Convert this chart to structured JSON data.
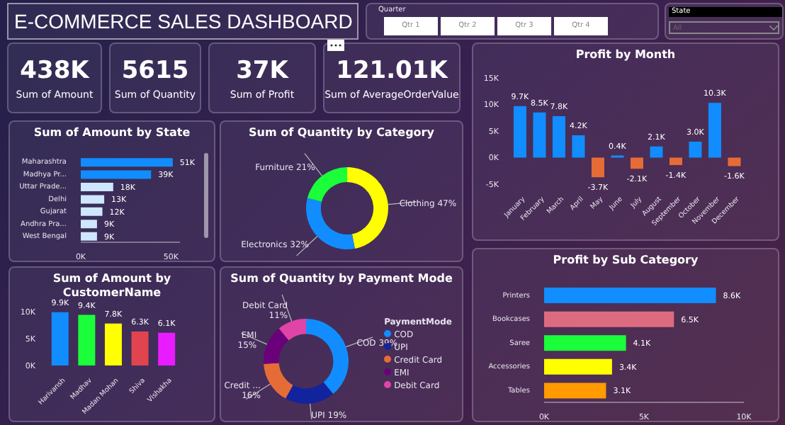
{
  "chart_data": [
    {
      "type": "other",
      "title": "E-COMMERCE SALES DASHBOARD",
      "annotations": [
        "Quarter",
        "Qtr 1",
        "Qtr 2",
        "Qtr 3",
        "Qtr 4",
        "State",
        "All"
      ]
    },
    {
      "type": "other",
      "annotations": [
        "438K",
        "Sum of Amount",
        "5615",
        "Sum of Quantity",
        "37K",
        "Sum of Profit",
        "121.01K",
        "Sum of AverageOrderValue"
      ]
    },
    {
      "type": "bar",
      "title": "Sum of Amount by State",
      "orientation": "horizontal",
      "categories": [
        "Maharashtra",
        "Madhya Pr...",
        "Uttar Prade...",
        "Delhi",
        "Gujarat",
        "Andhra Pra...",
        "West Bengal"
      ],
      "values": [
        51000,
        39000,
        18000,
        13000,
        12000,
        9000,
        9000
      ],
      "value_labels": [
        "51K",
        "39K",
        "18K",
        "13K",
        "12K",
        "9K",
        "9K"
      ],
      "colors": [
        "#118dff",
        "#118dff",
        "#cfe6ff",
        "#cfe6ff",
        "#cfe6ff",
        "#cfe6ff",
        "#cfe6ff"
      ],
      "xlim": [
        0,
        55000
      ],
      "xticks": [
        {
          "value": 0,
          "label": "0K"
        },
        {
          "value": 50000,
          "label": "50K"
        }
      ]
    },
    {
      "type": "donut",
      "title": "Sum of Quantity by Category",
      "categories": [
        "Clothing",
        "Electronics",
        "Furniture"
      ],
      "values": [
        47,
        32,
        21
      ],
      "value_labels": [
        "47%",
        "32%",
        "21%"
      ],
      "colors": [
        "#ffff00",
        "#118dff",
        "#1aff3a"
      ]
    },
    {
      "type": "bar",
      "title": "Profit by Month",
      "categories": [
        "January",
        "February",
        "March",
        "April",
        "May",
        "June",
        "July",
        "August",
        "September",
        "October",
        "November",
        "December"
      ],
      "values": [
        9700,
        8500,
        7800,
        4200,
        -3700,
        400,
        -2100,
        2100,
        -1400,
        3000,
        10300,
        -1600
      ],
      "value_labels": [
        "9.7K",
        "8.5K",
        "7.8K",
        "4.2K",
        "-3.7K",
        "0.4K",
        "-2.1K",
        "2.1K",
        "-1.4K",
        "3.0K",
        "10.3K",
        "-1.6K"
      ],
      "colors": [
        "#118dff",
        "#118dff",
        "#118dff",
        "#118dff",
        "#e66c37",
        "#118dff",
        "#e66c37",
        "#118dff",
        "#e66c37",
        "#118dff",
        "#118dff",
        "#e66c37"
      ],
      "ylim": [
        -5000,
        15000
      ],
      "yticks": [
        {
          "value": -5000,
          "label": "-5K"
        },
        {
          "value": 0,
          "label": "0K"
        },
        {
          "value": 5000,
          "label": "5K"
        },
        {
          "value": 10000,
          "label": "10K"
        },
        {
          "value": 15000,
          "label": "15K"
        }
      ]
    },
    {
      "type": "bar",
      "title": "Sum of Amount by CustomerName",
      "categories": [
        "Harivansh",
        "Madhav",
        "Madan Mohan",
        "Shiva",
        "Vishakha"
      ],
      "values": [
        9900,
        9400,
        7800,
        6300,
        6100
      ],
      "value_labels": [
        "9.9K",
        "9.4K",
        "7.8K",
        "6.3K",
        "6.1K"
      ],
      "colors": [
        "#118dff",
        "#1aff3a",
        "#ffff00",
        "#e0454f",
        "#e81cff"
      ],
      "ylim": [
        0,
        10000
      ],
      "yticks": [
        {
          "value": 0,
          "label": "0K"
        },
        {
          "value": 5000,
          "label": "5K"
        },
        {
          "value": 10000,
          "label": "10K"
        }
      ]
    },
    {
      "type": "donut",
      "title": "Sum of Quantity by Payment Mode",
      "legend_title": "PaymentMode",
      "legend": "right",
      "categories": [
        "COD",
        "UPI",
        "Credit Card",
        "EMI",
        "Debit Card"
      ],
      "values": [
        39,
        19,
        16,
        15,
        11
      ],
      "value_labels": [
        "COD 39%",
        "UPI 19%",
        "Credit ... 16%",
        "EMI 15%",
        "Debit Card 11%"
      ],
      "colors": [
        "#118dff",
        "#12239e",
        "#e66c37",
        "#6b007b",
        "#e044a7"
      ]
    },
    {
      "type": "bar",
      "title": "Profit by Sub Category",
      "orientation": "horizontal",
      "categories": [
        "Printers",
        "Bookcases",
        "Saree",
        "Accessories",
        "Tables"
      ],
      "values": [
        8600,
        6500,
        4100,
        3400,
        3100
      ],
      "value_labels": [
        "8.6K",
        "6.5K",
        "4.1K",
        "3.4K",
        "3.1K"
      ],
      "colors": [
        "#118dff",
        "#dd6b7f",
        "#1aff3a",
        "#ffff00",
        "#ff9a00"
      ],
      "xlim": [
        0,
        10000
      ],
      "xticks": [
        {
          "value": 0,
          "label": "0K"
        },
        {
          "value": 5000,
          "label": "5K"
        },
        {
          "value": 10000,
          "label": "10K"
        }
      ]
    }
  ]
}
